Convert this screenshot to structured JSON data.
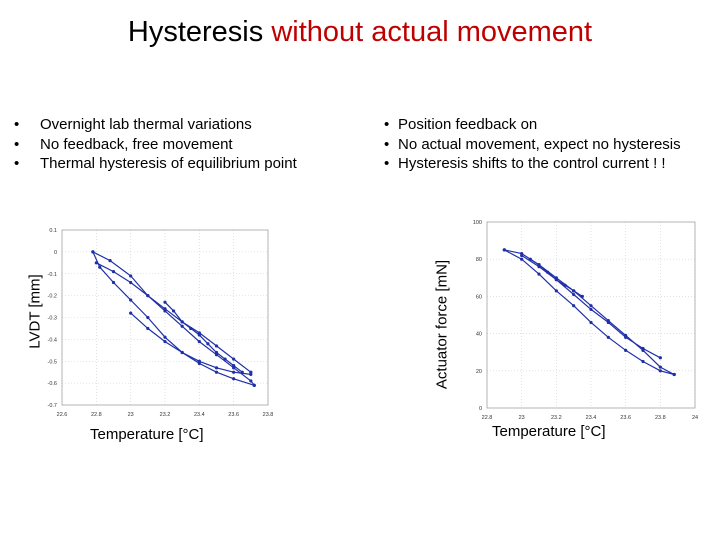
{
  "title": {
    "part1": "Hysteresis ",
    "part2": "without actual movement",
    "accent_color": "#c00000"
  },
  "left_bullets": [
    "Overnight lab thermal variations",
    "No feedback, free movement",
    "Thermal hysteresis of equilibrium point"
  ],
  "right_bullets": [
    "Position feedback on",
    "No actual movement, expect no hysteresis",
    "Hysteresis shifts to the control current ! !"
  ],
  "chart_data": [
    {
      "type": "line",
      "xlabel": "Temperature [°C]",
      "ylabel": "LVDT [mm]",
      "xlim": [
        22.6,
        23.8
      ],
      "ylim": [
        -0.7,
        0.1
      ],
      "xticks": [
        "22.6",
        "22.8",
        "23",
        "23.2",
        "23.4",
        "23.6",
        "23.8"
      ],
      "yticks": [
        "0.1",
        "0",
        "-0.1",
        "-0.2",
        "-0.3",
        "-0.4",
        "-0.5",
        "-0.6",
        "-0.7"
      ],
      "grid": true,
      "series_color": "#1f2fa8",
      "series": [
        {
          "x": [
            22.78,
            22.88,
            23.0,
            23.1,
            23.2,
            23.3,
            23.4,
            23.5,
            23.6,
            23.7,
            23.72
          ],
          "y": [
            0.0,
            -0.04,
            -0.11,
            -0.2,
            -0.27,
            -0.34,
            -0.41,
            -0.47,
            -0.53,
            -0.59,
            -0.61
          ]
        },
        {
          "x": [
            23.72,
            23.6,
            23.5,
            23.4,
            23.3,
            23.2,
            23.1,
            23.0,
            22.9,
            22.82,
            22.78
          ],
          "y": [
            -0.61,
            -0.58,
            -0.55,
            -0.51,
            -0.46,
            -0.39,
            -0.3,
            -0.22,
            -0.14,
            -0.07,
            0.0
          ]
        },
        {
          "x": [
            22.8,
            22.9,
            23.0,
            23.1,
            23.2,
            23.3,
            23.4,
            23.5,
            23.6,
            23.7
          ],
          "y": [
            -0.05,
            -0.09,
            -0.14,
            -0.2,
            -0.26,
            -0.32,
            -0.37,
            -0.43,
            -0.49,
            -0.55
          ]
        },
        {
          "x": [
            23.7,
            23.6,
            23.5,
            23.4,
            23.3,
            23.2,
            23.1,
            23.0
          ],
          "y": [
            -0.56,
            -0.55,
            -0.53,
            -0.5,
            -0.46,
            -0.41,
            -0.35,
            -0.28
          ]
        },
        {
          "x": [
            23.2,
            23.25,
            23.3,
            23.35,
            23.4,
            23.45,
            23.5,
            23.55,
            23.6,
            23.65
          ],
          "y": [
            -0.23,
            -0.27,
            -0.32,
            -0.35,
            -0.38,
            -0.42,
            -0.46,
            -0.49,
            -0.52,
            -0.55
          ]
        }
      ]
    },
    {
      "type": "line",
      "xlabel": "Temperature [°C]",
      "ylabel": "Actuator force [mN]",
      "xlim": [
        22.8,
        24.0
      ],
      "ylim": [
        0,
        100
      ],
      "xticks": [
        "22.8",
        "23",
        "23.2",
        "23.4",
        "23.6",
        "23.8",
        "24"
      ],
      "yticks": [
        "100",
        "80",
        "60",
        "40",
        "20",
        "0"
      ],
      "grid": true,
      "series_color": "#1f2fa8",
      "series": [
        {
          "x": [
            22.9,
            23.0,
            23.1,
            23.2,
            23.3,
            23.4,
            23.5,
            23.6,
            23.7,
            23.8,
            23.88
          ],
          "y": [
            85,
            80,
            72,
            63,
            55,
            46,
            38,
            31,
            25,
            20,
            18
          ]
        },
        {
          "x": [
            23.88,
            23.8,
            23.7,
            23.6,
            23.5,
            23.4,
            23.3,
            23.2,
            23.1,
            23.0,
            22.9
          ],
          "y": [
            18,
            22,
            31,
            39,
            47,
            55,
            63,
            70,
            77,
            83,
            85
          ]
        },
        {
          "x": [
            23.0,
            23.1,
            23.2,
            23.3,
            23.4,
            23.5,
            23.6,
            23.7,
            23.8
          ],
          "y": [
            82,
            76,
            69,
            61,
            53,
            46,
            38,
            32,
            27
          ]
        },
        {
          "x": [
            23.05,
            23.1,
            23.15,
            23.2,
            23.25,
            23.3,
            23.35
          ],
          "y": [
            80,
            77,
            73,
            69,
            66,
            63,
            60
          ]
        }
      ]
    }
  ]
}
